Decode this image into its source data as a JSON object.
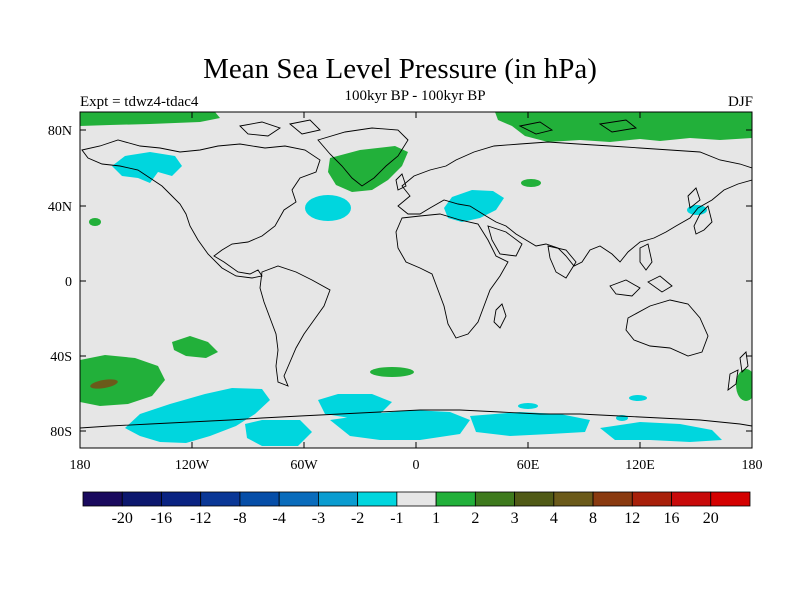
{
  "header": {
    "title": "Mean Sea Level Pressure (in hPa)",
    "subtitle": "100kyr BP - 100kyr BP",
    "expt": "Expt = tdwz4-tdac4",
    "season": "DJF"
  },
  "map": {
    "lat_ticks": [
      "80N",
      "40N",
      "0",
      "40S",
      "80S"
    ],
    "lon_ticks": [
      "180",
      "120W",
      "60W",
      "0",
      "60E",
      "120E",
      "180"
    ],
    "colors": {
      "background": "#e6e6e6",
      "positive_1_2": "#22b03a",
      "positive_3_4": "#3e7a1d",
      "positive_4_8": "#6b5a1a",
      "negative_1_2": "#00d6de",
      "coast": "#000000"
    }
  },
  "colorbar": {
    "labels": [
      "-20",
      "-16",
      "-12",
      "-8",
      "-4",
      "-3",
      "-2",
      "-1",
      "1",
      "2",
      "3",
      "4",
      "8",
      "12",
      "16",
      "20"
    ],
    "colors": [
      "#1a0a5e",
      "#0c176e",
      "#0a2382",
      "#0a3796",
      "#064ea8",
      "#0a6cbc",
      "#0a9cd0",
      "#00d6de",
      "#e6e6e6",
      "#22b03a",
      "#3e7a1d",
      "#505a16",
      "#6b5a1a",
      "#8a3a10",
      "#a8200a",
      "#c80a0a",
      "#d40000"
    ]
  }
}
